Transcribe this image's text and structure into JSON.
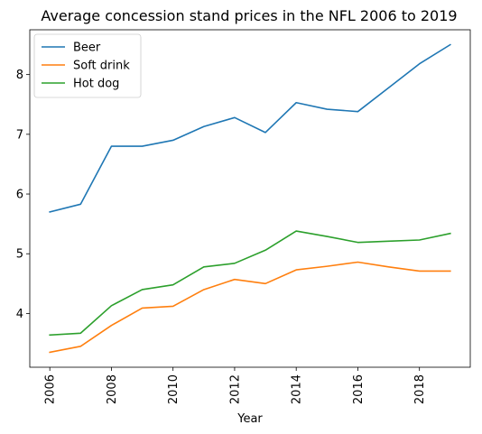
{
  "chart_data": {
    "type": "line",
    "title": "Average concession stand prices in the NFL 2006 to 2019",
    "xlabel": "Year",
    "ylabel": "",
    "x": [
      2006,
      2007,
      2008,
      2009,
      2010,
      2011,
      2012,
      2013,
      2014,
      2015,
      2016,
      2017,
      2018,
      2019
    ],
    "xticks": [
      "2006",
      "2008",
      "2010",
      "2012",
      "2014",
      "2016",
      "2018"
    ],
    "yticks": [
      "4",
      "5",
      "6",
      "7",
      "8"
    ],
    "xlim": [
      2005.35,
      2019.65
    ],
    "ylim": [
      3.1,
      8.75
    ],
    "grid": false,
    "legend_position": "upper left",
    "series": [
      {
        "name": "Beer",
        "color": "#1f77b4",
        "values": [
          5.7,
          5.83,
          6.8,
          6.8,
          6.9,
          7.13,
          7.28,
          7.03,
          7.53,
          7.42,
          7.38,
          7.78,
          8.18,
          8.5
        ]
      },
      {
        "name": "Soft drink",
        "color": "#ff7f0e",
        "values": [
          3.35,
          3.45,
          3.8,
          4.09,
          4.12,
          4.4,
          4.57,
          4.5,
          4.73,
          4.79,
          4.86,
          4.78,
          4.71,
          4.71
        ]
      },
      {
        "name": "Hot dog",
        "color": "#2ca02c",
        "values": [
          3.64,
          3.67,
          4.13,
          4.4,
          4.48,
          4.78,
          4.84,
          5.06,
          5.38,
          5.29,
          5.19,
          5.21,
          5.23,
          5.34
        ]
      }
    ]
  }
}
